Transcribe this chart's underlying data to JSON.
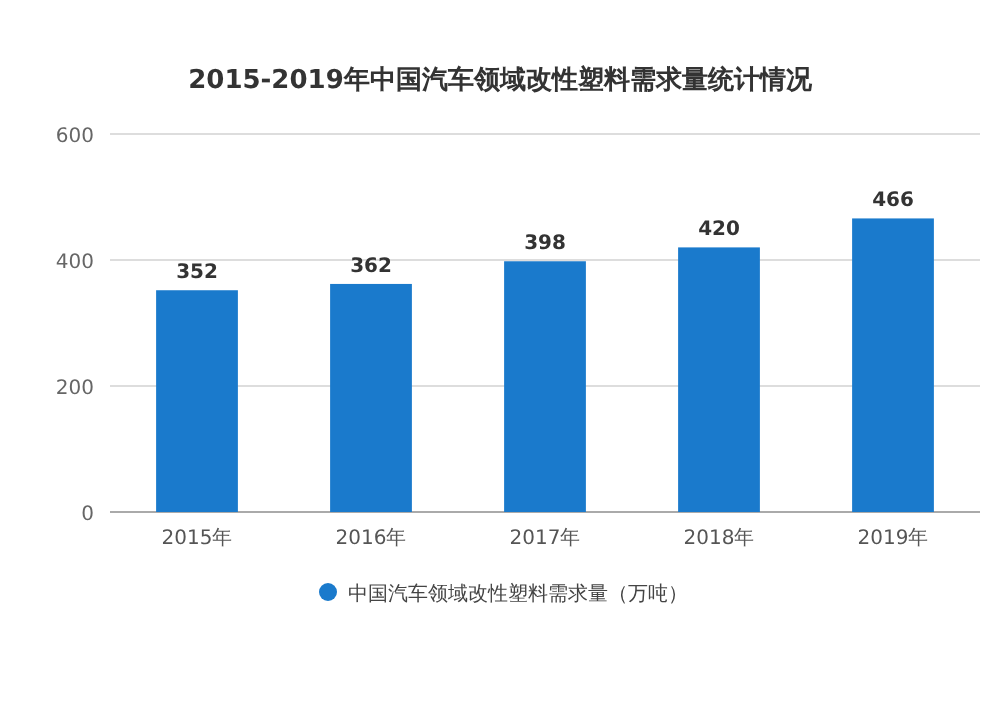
{
  "chart_data": {
    "type": "bar",
    "title": "2015-2019年中国汽车领域改性塑料需求量统计情况",
    "categories": [
      "2015年",
      "2016年",
      "2017年",
      "2018年",
      "2019年"
    ],
    "series": [
      {
        "name": "中国汽车领域改性塑料需求量（万吨）",
        "color": "#1a7acc",
        "values": [
          352,
          362,
          398,
          420,
          466
        ]
      }
    ],
    "ylim": [
      0,
      600
    ],
    "yticks": [
      0,
      200,
      400,
      600
    ],
    "grid": "y",
    "legend": "bottom",
    "data_labels": true
  }
}
